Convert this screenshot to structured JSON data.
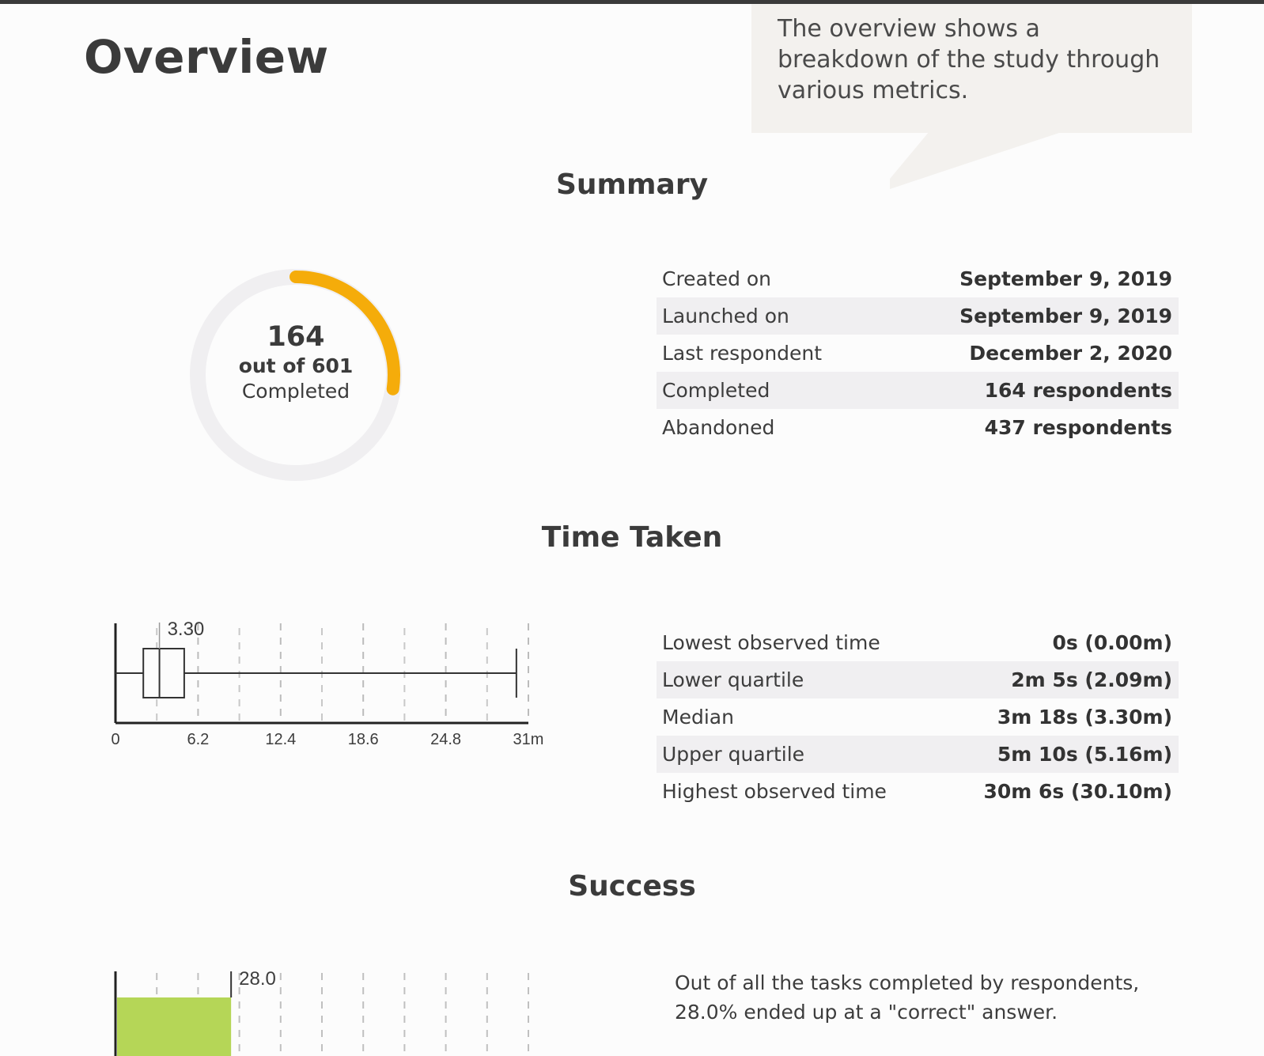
{
  "page": {
    "title": "Overview"
  },
  "callout": {
    "text": "The overview shows a breakdown of the study through various metrics."
  },
  "sections": {
    "summary": "Summary",
    "time_taken": "Time Taken",
    "success": "Success"
  },
  "summary": {
    "completed_count": "164",
    "out_of": "out of 601",
    "completed_label": "Completed",
    "completed_value": 164,
    "total_value": 601,
    "colors": {
      "progress": "#f5ac0a",
      "track": "#f0eff1"
    },
    "rows": [
      {
        "label": "Created on",
        "value": "September 9, 2019"
      },
      {
        "label": "Launched on",
        "value": "September 9, 2019"
      },
      {
        "label": "Last respondent",
        "value": "December 2, 2020"
      },
      {
        "label": "Completed",
        "value": "164 respondents"
      },
      {
        "label": "Abandoned",
        "value": "437 respondents"
      }
    ]
  },
  "time_taken": {
    "rows": [
      {
        "label": "Lowest observed time",
        "value": "0s (0.00m)"
      },
      {
        "label": "Lower quartile",
        "value": "2m 5s (2.09m)"
      },
      {
        "label": "Median",
        "value": "3m 18s (3.30m)"
      },
      {
        "label": "Upper quartile",
        "value": "5m 10s (5.16m)"
      },
      {
        "label": "Highest observed time",
        "value": "30m 6s (30.10m)"
      }
    ]
  },
  "success": {
    "text_line1": "Out of all the tasks completed by respondents,",
    "text_line2": "28.0% ended up at a \"correct\" answer.",
    "bar_color": "#b5d657"
  },
  "chart_data": [
    {
      "type": "boxplot",
      "min": 0.0,
      "q1": 2.09,
      "median": 3.3,
      "q3": 5.16,
      "max": 30.1,
      "median_label": "3.30",
      "xlim": [
        0,
        31
      ],
      "ticks": [
        0,
        6.2,
        12.4,
        18.6,
        24.8,
        31
      ],
      "tick_labels": [
        "0",
        "6.2",
        "12.4",
        "18.6",
        "24.8",
        "31m"
      ]
    },
    {
      "type": "bar",
      "value": 28.0,
      "value_label": "28.0",
      "xlim": [
        0,
        100
      ]
    }
  ]
}
